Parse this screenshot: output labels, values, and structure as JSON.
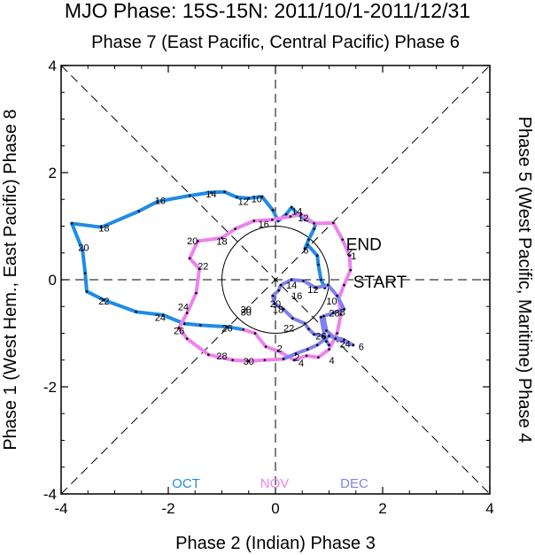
{
  "chart_data": {
    "type": "line",
    "title": "MJO Phase: 15S-15N: 2011/10/1-2011/12/31",
    "top_label": "Phase 7 (East Pacific, Central Pacific) Phase 6",
    "bottom_label": "Phase 2 (Indian) Phase 3",
    "left_label": "Phase 1 (West Hem., East Pacific) Phase 8",
    "right_label": "Phase 5 (West Pacific, Maritime) Phase 4",
    "xlim": [
      -4,
      4
    ],
    "ylim": [
      -4,
      4
    ],
    "x_ticks": [
      "-4",
      "-2",
      "0",
      "2",
      "4"
    ],
    "y_ticks": [
      "4",
      "2",
      "0",
      "-2",
      "-4"
    ],
    "x_tick_values": [
      -4,
      -2,
      0,
      2,
      4
    ],
    "y_tick_values": [
      4,
      2,
      0,
      -2,
      -4
    ],
    "unit_circle_radius": 1,
    "start_label": "START",
    "end_label": "END",
    "series": [
      {
        "name": "OCT",
        "color": "#1f8ce6",
        "points": [
          [
            0.92,
            -0.15
          ],
          [
            0.85,
            0.0
          ],
          [
            0.8,
            0.28
          ],
          [
            0.78,
            0.45
          ],
          [
            0.6,
            0.65
          ],
          [
            0.55,
            0.58
          ],
          [
            0.62,
            0.75
          ],
          [
            0.72,
            0.95
          ],
          [
            0.75,
            1.05
          ],
          [
            0.55,
            1.13
          ],
          [
            0.42,
            1.22
          ],
          [
            0.3,
            1.35
          ],
          [
            0.2,
            1.22
          ],
          [
            0.05,
            1.1
          ],
          [
            -0.05,
            1.3
          ],
          [
            -0.25,
            1.55
          ],
          [
            -0.5,
            1.52
          ],
          [
            -0.72,
            1.54
          ],
          [
            -0.95,
            1.64
          ],
          [
            -1.2,
            1.63
          ],
          [
            -1.6,
            1.57
          ],
          [
            -2.2,
            1.46
          ],
          [
            -2.55,
            1.28
          ],
          [
            -3.25,
            0.98
          ],
          [
            -3.8,
            1.05
          ],
          [
            -3.6,
            0.55
          ],
          [
            -3.55,
            0.12
          ],
          [
            -3.52,
            -0.22
          ],
          [
            -3.2,
            -0.38
          ],
          [
            -2.6,
            -0.6
          ],
          [
            -2.1,
            -0.66
          ],
          [
            -1.7,
            -0.82
          ],
          [
            -1.4,
            -0.85
          ],
          [
            -0.9,
            -0.88
          ],
          [
            -0.6,
            -0.93
          ]
        ]
      },
      {
        "name": "NOV",
        "color": "#ee82ee",
        "points": [
          [
            -0.6,
            -0.93
          ],
          [
            -0.38,
            -1.0
          ],
          [
            -0.18,
            -1.25
          ],
          [
            0.05,
            -1.33
          ],
          [
            0.35,
            -1.5
          ],
          [
            0.58,
            -1.42
          ],
          [
            0.8,
            -1.45
          ],
          [
            1.0,
            -1.3
          ],
          [
            1.15,
            -1.0
          ],
          [
            1.22,
            -0.65
          ],
          [
            1.18,
            -0.35
          ],
          [
            1.28,
            -0.1
          ],
          [
            1.4,
            0.18
          ],
          [
            1.38,
            0.45
          ],
          [
            1.25,
            0.75
          ],
          [
            1.08,
            1.06
          ],
          [
            0.72,
            1.05
          ],
          [
            0.48,
            1.22
          ],
          [
            0.28,
            1.18
          ],
          [
            -0.06,
            1.12
          ],
          [
            -0.4,
            1.1
          ],
          [
            -0.75,
            0.95
          ],
          [
            -1.0,
            0.78
          ],
          [
            -1.45,
            0.72
          ],
          [
            -1.6,
            0.4
          ],
          [
            -1.42,
            0.2
          ],
          [
            -1.48,
            -0.25
          ],
          [
            -1.65,
            -0.62
          ],
          [
            -1.8,
            -0.9
          ],
          [
            -1.65,
            -1.1
          ],
          [
            -1.25,
            -1.4
          ],
          [
            -0.8,
            -1.5
          ],
          [
            -0.5,
            -1.52
          ],
          [
            -0.2,
            -1.5
          ],
          [
            0.15,
            -1.48
          ]
        ]
      },
      {
        "name": "DEC",
        "color": "#8080ee",
        "points": [
          [
            0.15,
            -1.48
          ],
          [
            0.38,
            -1.38
          ],
          [
            0.6,
            -1.3
          ],
          [
            0.78,
            -1.22
          ],
          [
            1.0,
            -1.05
          ],
          [
            1.28,
            -1.12
          ],
          [
            1.45,
            -1.22
          ],
          [
            1.12,
            -1.1
          ],
          [
            0.95,
            -0.95
          ],
          [
            0.9,
            -0.68
          ],
          [
            1.08,
            -0.62
          ],
          [
            1.28,
            -0.55
          ],
          [
            1.15,
            -0.3
          ],
          [
            0.98,
            -0.1
          ],
          [
            0.75,
            -0.15
          ],
          [
            0.52,
            -0.02
          ],
          [
            0.3,
            0.0
          ],
          [
            0.1,
            -0.1
          ],
          [
            0.06,
            -0.2
          ],
          [
            -0.05,
            -0.3
          ],
          [
            -0.02,
            -0.45
          ],
          [
            0.15,
            -0.55
          ],
          [
            0.32,
            -0.72
          ],
          [
            0.55,
            -0.82
          ],
          [
            0.62,
            -0.92
          ],
          [
            0.72,
            -1.02
          ],
          [
            0.88,
            -1.05
          ],
          [
            0.95,
            -1.15
          ],
          [
            1.0,
            -1.22
          ],
          [
            0.92,
            -1.08
          ],
          [
            0.85,
            -0.7
          ]
        ]
      }
    ],
    "annotations": [
      {
        "text": "16",
        "x": -2.15,
        "y": 1.48
      },
      {
        "text": "14",
        "x": -1.2,
        "y": 1.6
      },
      {
        "text": "12",
        "x": -0.6,
        "y": 1.46
      },
      {
        "text": "10",
        "x": -0.35,
        "y": 1.51
      },
      {
        "text": "18",
        "x": -3.2,
        "y": 0.97
      },
      {
        "text": "20",
        "x": -3.58,
        "y": 0.6
      },
      {
        "text": "22",
        "x": -3.2,
        "y": -0.4
      },
      {
        "text": "24",
        "x": -2.15,
        "y": -0.7
      },
      {
        "text": "26",
        "x": -0.9,
        "y": -0.9
      },
      {
        "text": "30",
        "x": -0.55,
        "y": -0.6
      },
      {
        "text": "16",
        "x": -0.22,
        "y": 1.04
      },
      {
        "text": "14",
        "x": 0.4,
        "y": 1.28
      },
      {
        "text": "12",
        "x": 0.52,
        "y": 1.16
      },
      {
        "text": "6",
        "x": 0.57,
        "y": 0.55
      },
      {
        "text": "20",
        "x": -1.55,
        "y": 0.73
      },
      {
        "text": "18",
        "x": -1.0,
        "y": 0.72
      },
      {
        "text": "22",
        "x": -1.35,
        "y": 0.26
      },
      {
        "text": "24",
        "x": -1.72,
        "y": -0.5
      },
      {
        "text": "26",
        "x": -1.8,
        "y": -0.95
      },
      {
        "text": "28",
        "x": -1.0,
        "y": -1.42
      },
      {
        "text": "30",
        "x": -0.5,
        "y": -1.52
      },
      {
        "text": "2",
        "x": 1.38,
        "y": 0.52
      },
      {
        "text": "1",
        "x": 1.46,
        "y": 0.45
      },
      {
        "text": "2",
        "x": 0.08,
        "y": -1.28
      },
      {
        "text": "2",
        "x": 0.4,
        "y": -1.45
      },
      {
        "text": "4",
        "x": 0.48,
        "y": -1.55
      },
      {
        "text": "4",
        "x": 1.05,
        "y": -1.5
      },
      {
        "text": "6",
        "x": 1.6,
        "y": -1.25
      },
      {
        "text": "24",
        "x": 1.3,
        "y": -1.2
      },
      {
        "text": "26",
        "x": 0.85,
        "y": -1.05
      },
      {
        "text": "28",
        "x": 1.1,
        "y": -0.62
      },
      {
        "text": "8",
        "x": 1.25,
        "y": -0.6
      },
      {
        "text": "10",
        "x": 1.05,
        "y": -0.4
      },
      {
        "text": "12",
        "x": 0.7,
        "y": -0.18
      },
      {
        "text": "14",
        "x": 0.3,
        "y": -0.1
      },
      {
        "text": "16",
        "x": 0.4,
        "y": -0.3
      },
      {
        "text": "18",
        "x": 0.05,
        "y": -0.55
      },
      {
        "text": "20",
        "x": 0.0,
        "y": -0.45
      },
      {
        "text": "22",
        "x": 0.25,
        "y": -0.9
      },
      {
        "text": "30",
        "x": -0.55,
        "y": -0.55
      }
    ],
    "legend": [
      "OCT",
      "NOV",
      "DEC"
    ],
    "grid": false
  }
}
